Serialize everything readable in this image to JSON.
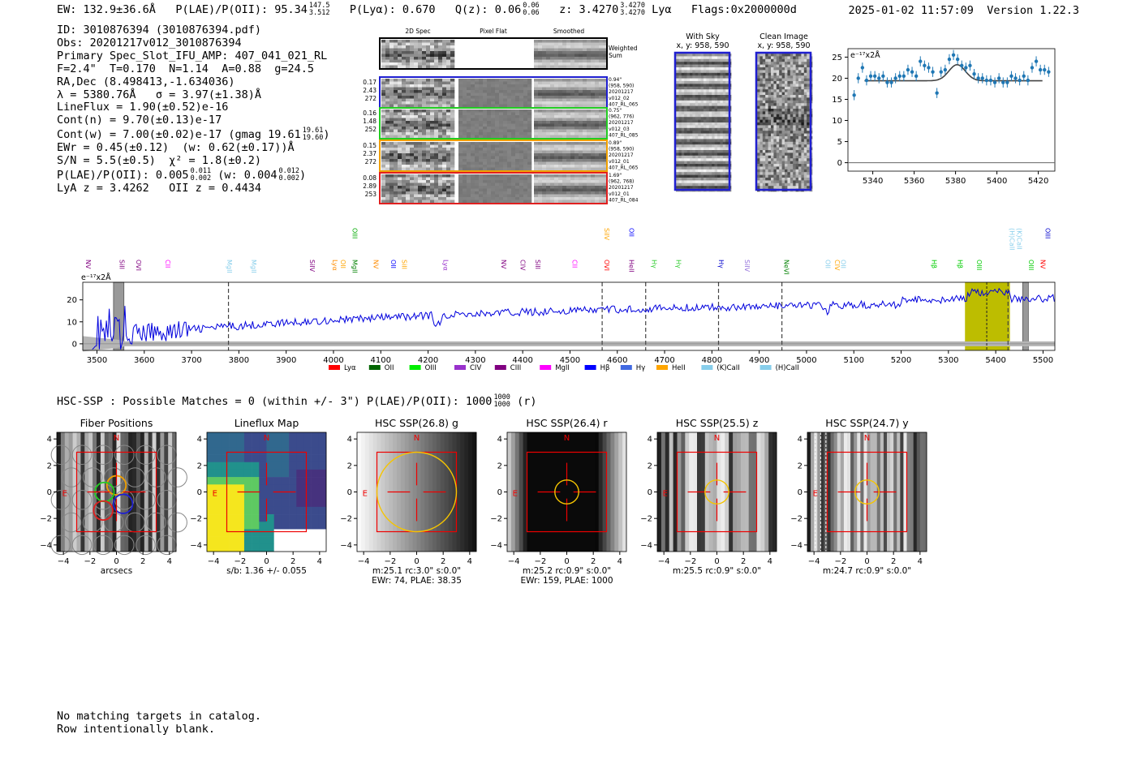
{
  "header": {
    "ew": "EW: 132.9±36.6Å",
    "plae_label": "P(LAE)/P(OII): 95.34",
    "plae_hi": "147.5",
    "plae_lo": "3.512",
    "plya": "P(Lyα): 0.670",
    "qz_label": "Q(z): 0.06",
    "qz_hi": "0.06",
    "qz_lo": "0.06",
    "z_label": "z: 3.4270",
    "z_hi": "3.4270",
    "z_lo": "3.4270",
    "z_line": "Lyα",
    "flags": "Flags:0x2000000d",
    "datetime": "2025-01-02 11:57:09",
    "version": "Version 1.22.3"
  },
  "info_lines": {
    "l1": "ID: 3010876394 (3010876394.pdf)",
    "l2": "Obs: 20201217v012_3010876394",
    "l3": "Primary Spec_Slot_IFU_AMP: 407_041_021_RL",
    "l4": "F=2.4\"  T=0.170  N=1.14  A=0.88  g=24.5",
    "l5": "RA,Dec (8.498413,-1.634036)",
    "l6": "λ = 5380.76Å   σ = 3.97(±1.38)Å",
    "l7": "LineFlux = 1.90(±0.52)e-16",
    "l8": "Cont(n) = 9.70(±0.13)e-17",
    "l9": "Cont(w) = 7.00(±0.02)e-17 (gmag 19.61",
    "l9_hi": "19.61",
    "l9_lo": "19.60",
    "l10": "EWr = 0.45(±0.12)  (w: 0.62(±0.17))Å",
    "l11": "S/N = 5.5(±0.5)  χ² = 1.8(±0.2)",
    "l12": "P(LAE)/P(OII): 0.005",
    "l12_hi1": "0.011",
    "l12_lo1": "0.002",
    "l12_mid": "(w: 0.004",
    "l12_hi2": "0.012",
    "l12_lo2": "0.002",
    "l13": "LyA z = 3.4262   OII z = 0.4434"
  },
  "cutouts": {
    "col_2d": "2D Spec",
    "col_flat": "Pixel Flat",
    "col_smooth": "Smoothed",
    "weighted_sum": [
      "Weighted",
      "Sum"
    ],
    "rows": [
      {
        "stats": [
          "0.17",
          "2.43",
          "272"
        ],
        "meta": [
          "0.94\"",
          "(958, 590)",
          "20201217",
          "v012_02",
          "407_RL_065"
        ],
        "color": "#1f1fd0"
      },
      {
        "stats": [
          "0.16",
          "1.48",
          "252"
        ],
        "meta": [
          "0.75\"",
          "(962, 776)",
          "20201217",
          "v012_03",
          "407_RL_085"
        ],
        "color": "#22cc22"
      },
      {
        "stats": [
          "0.15",
          "2.37",
          "272"
        ],
        "meta": [
          "0.89\"",
          "(958, 590)",
          "20201217",
          "v012_01",
          "407_RL_065"
        ],
        "color": "#f0a000"
      },
      {
        "stats": [
          "0.08",
          "2.89",
          "253"
        ],
        "meta": [
          "1.69\"",
          "(962, 768)",
          "20201217",
          "v012_01",
          "407_RL_084"
        ],
        "color": "#e02020"
      }
    ],
    "with_sky": [
      "With Sky",
      "x, y: 958, 590"
    ],
    "clean_image": [
      "Clean Image",
      "x, y: 958, 590"
    ]
  },
  "chart_data": [
    {
      "type": "scatter",
      "title": "",
      "xlabel": "",
      "ylabel": "e⁻¹⁷x2Å",
      "xlim": [
        5328,
        5428
      ],
      "ylim": [
        -2,
        27
      ],
      "xticks": [
        5340,
        5360,
        5380,
        5400,
        5420
      ],
      "yticks": [
        0,
        5,
        10,
        15,
        20,
        25
      ],
      "series": [
        {
          "x": [
            5331,
            5333,
            5335,
            5337,
            5339,
            5341,
            5343,
            5345,
            5347,
            5349,
            5351,
            5353,
            5355,
            5357,
            5359,
            5361,
            5363,
            5365,
            5367,
            5369,
            5371,
            5373,
            5375,
            5377,
            5379,
            5381,
            5383,
            5385,
            5387,
            5389,
            5391,
            5393,
            5395,
            5397,
            5399,
            5401,
            5403,
            5405,
            5407,
            5409,
            5411,
            5413,
            5415,
            5417,
            5419,
            5421,
            5423,
            5425
          ],
          "y": [
            16,
            20,
            22.5,
            19.5,
            20.5,
            20.5,
            20,
            20.5,
            19,
            19,
            20,
            20.5,
            20.5,
            22,
            21.5,
            20.5,
            24,
            23,
            22.5,
            21.5,
            16.5,
            21.5,
            22,
            24.5,
            25.5,
            24.5,
            23,
            22.5,
            23,
            21,
            20,
            20,
            19.5,
            19.5,
            19,
            20,
            19,
            19,
            20.5,
            20,
            19.5,
            20.5,
            19.5,
            22.5,
            24,
            22,
            22,
            21.5
          ]
        }
      ],
      "model": {
        "continuum": 19.4,
        "peak": 23.2,
        "center": 5380.76,
        "sigma": 3.97
      }
    },
    {
      "type": "line",
      "title": "",
      "ylabel": "e⁻¹⁷x2Å",
      "xlim": [
        3470,
        5525
      ],
      "ylim": [
        -3,
        28
      ],
      "xticks": [
        3500,
        3600,
        3700,
        3800,
        3900,
        4000,
        4100,
        4200,
        4300,
        4400,
        4500,
        4600,
        4700,
        4800,
        4900,
        5000,
        5100,
        5200,
        5300,
        5400,
        5500
      ],
      "yticks": [
        0,
        10,
        20
      ],
      "highlight_range": [
        5335,
        5430
      ],
      "masked_ranges": [
        [
          3535,
          3557
        ],
        [
          5457,
          5469
        ]
      ],
      "dashed_lines": [
        3778,
        4568,
        4660,
        4814,
        4948,
        5426
      ],
      "emphasis_line": 5381,
      "line_labels": [
        {
          "x": 3470,
          "name": "NV",
          "color": "#800080",
          "row": 1
        },
        {
          "x": 3543,
          "name": "SiII",
          "color": "#800080",
          "row": 1
        },
        {
          "x": 3578,
          "name": "OVI",
          "color": "#800080",
          "row": 1
        },
        {
          "x": 3640,
          "name": "CII",
          "color": "#ff00ff",
          "row": 1
        },
        {
          "x": 3770,
          "name": "MgII",
          "color": "#87ceeb",
          "row": 1
        },
        {
          "x": 3822,
          "name": "MgII",
          "color": "#87ceeb",
          "row": 1
        },
        {
          "x": 3945,
          "name": "SiIV",
          "color": "#800080",
          "row": 1
        },
        {
          "x": 3993,
          "name": "Lyα",
          "color": "#ff8c00",
          "row": 1
        },
        {
          "x": 4010,
          "name": "OII",
          "color": "#ffa500",
          "row": 1
        },
        {
          "x": 4035,
          "name": "MgII",
          "color": "#008000",
          "row": 1
        },
        {
          "x": 4035,
          "name": "OIII",
          "color": "#00aa00",
          "row": 0
        },
        {
          "x": 4080,
          "name": "NV",
          "color": "#ff8c00",
          "row": 1
        },
        {
          "x": 4117,
          "name": "OII",
          "color": "#0000ff",
          "row": 1
        },
        {
          "x": 4140,
          "name": "SiII",
          "color": "#ffa500",
          "row": 1
        },
        {
          "x": 4227,
          "name": "Lyα",
          "color": "#9932cc",
          "row": 1
        },
        {
          "x": 4350,
          "name": "NV",
          "color": "#800080",
          "row": 1
        },
        {
          "x": 4390,
          "name": "CIV",
          "color": "#800080",
          "row": 1
        },
        {
          "x": 4422,
          "name": "SiII",
          "color": "#800080",
          "row": 1
        },
        {
          "x": 4500,
          "name": "CII",
          "color": "#ff00ff",
          "row": 1
        },
        {
          "x": 4568,
          "name": "OVI",
          "color": "#ff0000",
          "row": 1
        },
        {
          "x": 4568,
          "name": "SiIV",
          "color": "#ffa500",
          "row": 0
        },
        {
          "x": 4620,
          "name": "HeII",
          "color": "#800080",
          "row": 1
        },
        {
          "x": 4620,
          "name": "OII",
          "color": "#0000ff",
          "row": 0
        },
        {
          "x": 4668,
          "name": "Hγ",
          "color": "#32cd32",
          "row": 1
        },
        {
          "x": 4720,
          "name": "Hγ",
          "color": "#32cd32",
          "row": 1
        },
        {
          "x": 4810,
          "name": "Hγ",
          "color": "#0000cd",
          "row": 1
        },
        {
          "x": 4865,
          "name": "SiIV",
          "color": "#9370db",
          "row": 1
        },
        {
          "x": 4948,
          "name": "NeVI",
          "color": "#008000",
          "row": 1
        },
        {
          "x": 5035,
          "name": "OII",
          "color": "#87ceeb",
          "row": 1
        },
        {
          "x": 5055,
          "name": "CIV",
          "color": "#ffa500",
          "row": 1
        },
        {
          "x": 5068,
          "name": "OII",
          "color": "#87ceeb",
          "row": 1
        },
        {
          "x": 5260,
          "name": "Hβ",
          "color": "#00cc00",
          "row": 1
        },
        {
          "x": 5315,
          "name": "Hβ",
          "color": "#00cc00",
          "row": 1
        },
        {
          "x": 5355,
          "name": "OIII",
          "color": "#00cc00",
          "row": 1
        },
        {
          "x": 5425,
          "name": "(H)CaII",
          "color": "#87ceeb",
          "row": 0
        },
        {
          "x": 5440,
          "name": "(K)CaII",
          "color": "#87ceeb",
          "row": 0
        },
        {
          "x": 5465,
          "name": "OIII",
          "color": "#00cc00",
          "row": 1
        },
        {
          "x": 5490,
          "name": "NV",
          "color": "#ff0000",
          "row": 1
        },
        {
          "x": 5500,
          "name": "OIII",
          "color": "#0000cd",
          "row": 0
        }
      ],
      "legend": [
        {
          "name": "Lyα",
          "color": "#ff0000"
        },
        {
          "name": "OII",
          "color": "#006400"
        },
        {
          "name": "OIII",
          "color": "#00ee00"
        },
        {
          "name": "CIV",
          "color": "#9932cc"
        },
        {
          "name": "CIII",
          "color": "#800080"
        },
        {
          "name": "MgII",
          "color": "#ff00ff"
        },
        {
          "name": "Hβ",
          "color": "#0000ff"
        },
        {
          "name": "Hγ",
          "color": "#4169e1"
        },
        {
          "name": "HeII",
          "color": "#ffa500"
        },
        {
          "name": "(K)CaII",
          "color": "#87ceeb"
        },
        {
          "name": "(H)CaII",
          "color": "#87ceeb"
        }
      ]
    }
  ],
  "hsc": {
    "header": "HSC-SSP : Possible Matches = 0 (within +/- 3\")  P(LAE)/P(OII): 1000",
    "header_hi": "1000",
    "header_lo": "1000",
    "header_end": "(r)"
  },
  "panels": [
    {
      "title": "Fiber Positions",
      "caption1": "arcsecs",
      "caption2": ""
    },
    {
      "title": "Lineflux Map",
      "caption1": "s/b: 1.36 +/- 0.055",
      "caption2": ""
    },
    {
      "title": "HSC SSP(26.8) g",
      "caption1": "m:25.1 rc:3.0\"  s:0.0\"",
      "caption2": "EWr: 74, PLAE: 38.35"
    },
    {
      "title": "HSC SSP(26.4) r",
      "caption1": "m:25.2 rc:0.9\"  s:0.0\"",
      "caption2": "EWr: 159, PLAE: 1000"
    },
    {
      "title": "HSC SSP(25.5) z",
      "caption1": "m:25.5 rc:0.9\"  s:0.0\"",
      "caption2": ""
    },
    {
      "title": "HSC SSP(24.7) y",
      "caption1": "m:24.7 rc:0.9\"  s:0.0\"",
      "caption2": ""
    }
  ],
  "panel_axes": {
    "ticks": [
      "−4",
      "−2",
      "0",
      "2",
      "4"
    ],
    "north": "N",
    "east": "E"
  },
  "footer": {
    "l1": "No matching targets in catalog.",
    "l2": "Row intentionally blank."
  }
}
